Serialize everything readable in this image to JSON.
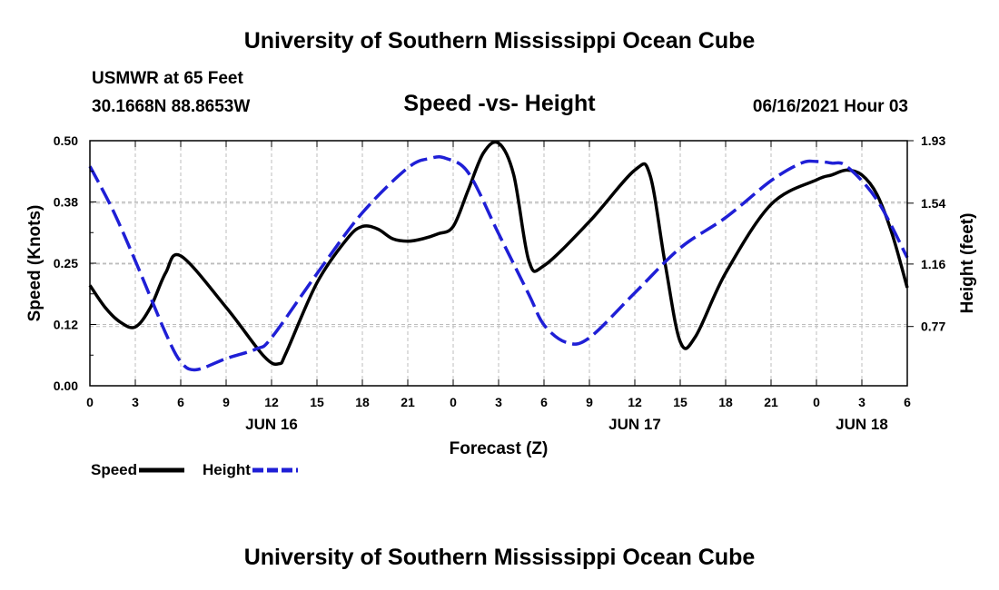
{
  "header": {
    "title": "University of Southern Mississippi Ocean Cube",
    "station": "USMWR at 65 Feet",
    "coords": "30.1668N  88.8653W",
    "subtitle": "Speed -vs- Height",
    "datetime": "06/16/2021 Hour 03"
  },
  "footer": {
    "title": "University of Southern Mississippi Ocean Cube"
  },
  "legend": {
    "speed_label": "Speed",
    "height_label": "Height"
  },
  "colors": {
    "speed": "#000000",
    "height": "#1f1fd6",
    "grid": "#bdbdbd"
  },
  "chart_data": {
    "type": "line",
    "title": "Speed -vs- Height",
    "xlabel": "Forecast (Z)",
    "ylabel": "Speed (Knots)",
    "y2label": "Height (feet)",
    "x_unit": "hours from 06/16/2021 00Z",
    "xlim": [
      0,
      54
    ],
    "ylim": [
      0,
      0.5
    ],
    "y2lim": [
      0.4,
      1.93
    ],
    "x_ticks": [
      {
        "x": 0,
        "label": "0"
      },
      {
        "x": 3,
        "label": "3"
      },
      {
        "x": 6,
        "label": "6"
      },
      {
        "x": 9,
        "label": "9"
      },
      {
        "x": 12,
        "label": "12"
      },
      {
        "x": 15,
        "label": "15"
      },
      {
        "x": 18,
        "label": "18"
      },
      {
        "x": 21,
        "label": "21"
      },
      {
        "x": 24,
        "label": "0"
      },
      {
        "x": 27,
        "label": "3"
      },
      {
        "x": 30,
        "label": "6"
      },
      {
        "x": 33,
        "label": "9"
      },
      {
        "x": 36,
        "label": "12"
      },
      {
        "x": 39,
        "label": "15"
      },
      {
        "x": 42,
        "label": "18"
      },
      {
        "x": 45,
        "label": "21"
      },
      {
        "x": 48,
        "label": "0"
      },
      {
        "x": 51,
        "label": "3"
      },
      {
        "x": 54,
        "label": "6"
      }
    ],
    "date_labels": [
      {
        "x": 12,
        "label": "JUN 16"
      },
      {
        "x": 36,
        "label": "JUN 17"
      },
      {
        "x": 51,
        "label": "JUN 18"
      }
    ],
    "y_ticks": [
      {
        "v": 0.0,
        "label": "0.00"
      },
      {
        "v": 0.125,
        "label": "0.12"
      },
      {
        "v": 0.25,
        "label": "0.25"
      },
      {
        "v": 0.375,
        "label": "0.38"
      },
      {
        "v": 0.5,
        "label": "0.50"
      }
    ],
    "y2_ticks": [
      {
        "v": 0.77,
        "label": "0.77"
      },
      {
        "v": 1.16,
        "label": "1.16"
      },
      {
        "v": 1.54,
        "label": "1.54"
      },
      {
        "v": 1.93,
        "label": "1.93"
      }
    ],
    "series": [
      {
        "name": "Speed",
        "axis": "left",
        "dash": "solid",
        "x": [
          0,
          1,
          2,
          3,
          4,
          5,
          6,
          9,
          11.5,
          12.5,
          13,
          15,
          17,
          18,
          19,
          20,
          21,
          22,
          23,
          24,
          25,
          26,
          27,
          28,
          29,
          30,
          33,
          36,
          37,
          38,
          39,
          40,
          42,
          45,
          48,
          49,
          50,
          51,
          52,
          53,
          54
        ],
        "y": [
          0.205,
          0.16,
          0.13,
          0.12,
          0.16,
          0.23,
          0.265,
          0.16,
          0.06,
          0.045,
          0.07,
          0.21,
          0.3,
          0.325,
          0.32,
          0.3,
          0.295,
          0.3,
          0.31,
          0.325,
          0.4,
          0.475,
          0.495,
          0.43,
          0.255,
          0.245,
          0.335,
          0.44,
          0.43,
          0.25,
          0.09,
          0.1,
          0.23,
          0.37,
          0.42,
          0.43,
          0.44,
          0.43,
          0.39,
          0.31,
          0.2
        ]
      },
      {
        "name": "Height",
        "axis": "right",
        "dash": "dashed",
        "x": [
          0,
          1.5,
          3,
          5,
          6,
          7,
          9,
          11,
          12,
          15,
          18,
          21,
          22.5,
          23.5,
          25,
          27,
          29,
          30,
          31.5,
          33,
          36,
          39,
          42,
          45,
          47,
          48,
          49,
          50,
          52,
          54
        ],
        "y": [
          1.77,
          1.5,
          1.18,
          0.73,
          0.55,
          0.5,
          0.57,
          0.63,
          0.7,
          1.1,
          1.48,
          1.76,
          1.82,
          1.82,
          1.73,
          1.35,
          0.97,
          0.78,
          0.67,
          0.7,
          0.98,
          1.26,
          1.45,
          1.68,
          1.79,
          1.8,
          1.79,
          1.77,
          1.56,
          1.2
        ]
      }
    ]
  }
}
